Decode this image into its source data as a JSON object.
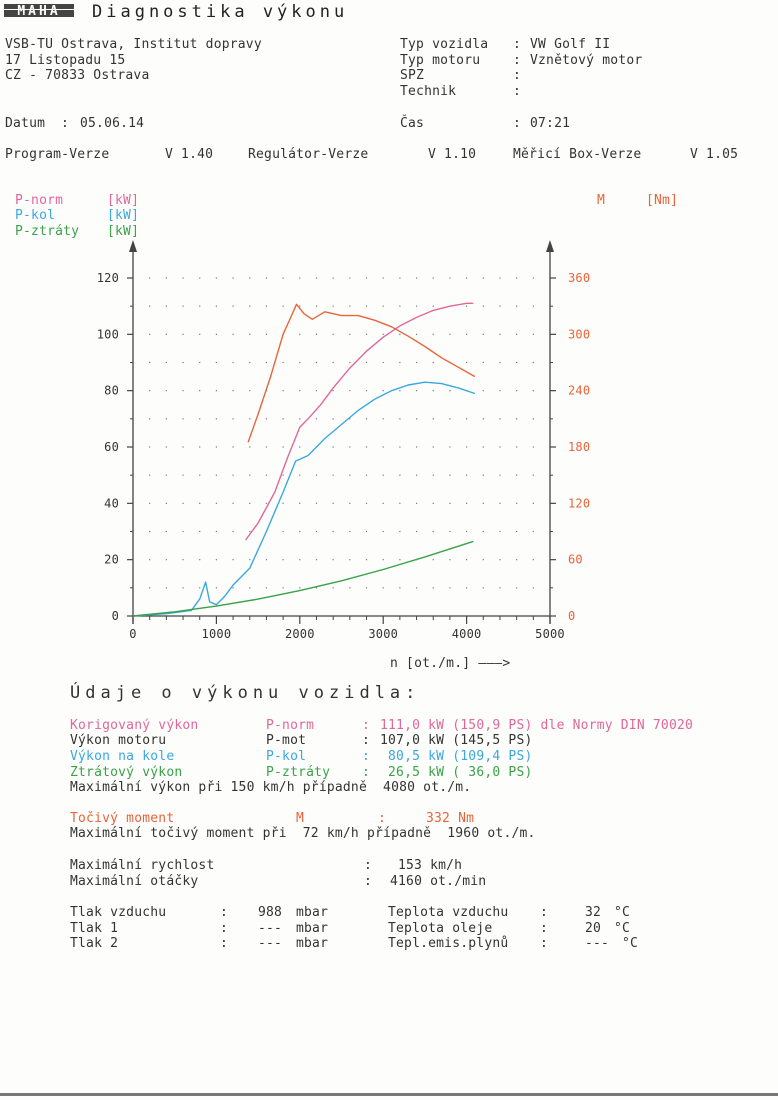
{
  "header": {
    "logo_text": "MAHA",
    "title": "Diagnostika výkonu",
    "address": [
      "VSB-TU Ostrava, Institut dopravy",
      "17 Listopadu 15",
      "CZ - 70833 Ostrava"
    ],
    "vehicle": [
      {
        "label": "Typ vozidla",
        "sep": ":",
        "value": "VW Golf II"
      },
      {
        "label": "Typ motoru",
        "sep": ":",
        "value": "Vznětový motor"
      },
      {
        "label": "SPZ",
        "sep": ":",
        "value": ""
      },
      {
        "label": "Technik",
        "sep": ":",
        "value": ""
      }
    ],
    "date_label": "Datum",
    "date_sep": ":",
    "date_value": "05.06.14",
    "time_label": "Čas",
    "time_sep": ":",
    "time_value": "07:21",
    "versions": [
      {
        "label": "Program-Verze",
        "value": "V 1.40"
      },
      {
        "label": "Regulátor-Verze",
        "value": "V 1.10"
      },
      {
        "label": "Měřicí Box-Verze",
        "value": "V 1.05"
      }
    ]
  },
  "legend": {
    "p_norm": {
      "name": "P-norm",
      "unit": "[kW]"
    },
    "p_kol": {
      "name": "P-kol",
      "unit": "[kW]"
    },
    "p_ztraty": {
      "name": "P-ztráty",
      "unit": "[kW]"
    },
    "m": {
      "name": "M",
      "unit": "[Nm]"
    }
  },
  "chart_data": {
    "type": "line",
    "xlabel": "n [ot./m.] ———>",
    "x_ticks": [
      "0",
      "1000",
      "2000",
      "3000",
      "4000",
      "5000"
    ],
    "y_left_ticks": [
      "0",
      "20",
      "40",
      "60",
      "80",
      "100",
      "120"
    ],
    "y_right_ticks": [
      "0",
      "60",
      "120",
      "180",
      "240",
      "300",
      "360"
    ],
    "xlim": [
      0,
      5000
    ],
    "ylim_left": [
      0,
      120
    ],
    "ylim_right": [
      0,
      360
    ],
    "grid": "dotted",
    "series": [
      {
        "name": "P-norm",
        "axis": "left",
        "color": "#e0679a",
        "x": [
          1350,
          1500,
          1700,
          1850,
          2000,
          2100,
          2250,
          2400,
          2600,
          2800,
          3000,
          3200,
          3400,
          3600,
          3800,
          4000,
          4080
        ],
        "y": [
          27,
          33,
          44,
          56,
          67,
          70,
          75,
          81,
          88,
          94,
          99,
          103,
          106,
          108.5,
          110,
          111,
          111
        ]
      },
      {
        "name": "P-kol",
        "axis": "left",
        "color": "#3aa8e0",
        "x": [
          0,
          400,
          700,
          800,
          870,
          920,
          1000,
          1100,
          1200,
          1400,
          1600,
          1800,
          1950,
          2100,
          2300,
          2500,
          2700,
          2900,
          3100,
          3300,
          3500,
          3700,
          3900,
          4100
        ],
        "y": [
          0,
          0.8,
          2,
          6,
          12,
          5,
          4,
          7,
          11,
          17,
          30,
          44,
          55,
          57,
          63,
          68,
          73,
          77,
          80,
          82,
          83,
          82.5,
          81,
          79
        ]
      },
      {
        "name": "P-ztráty",
        "axis": "left",
        "color": "#3aa24a",
        "x": [
          0,
          500,
          1000,
          1500,
          2000,
          2500,
          3000,
          3500,
          4080
        ],
        "y": [
          0,
          1.5,
          3.5,
          6,
          9,
          12.5,
          16.5,
          21,
          26.5
        ]
      },
      {
        "name": "M",
        "axis": "right",
        "color": "#e8643a",
        "x": [
          1380,
          1500,
          1650,
          1800,
          1900,
          1960,
          2050,
          2150,
          2300,
          2500,
          2700,
          2900,
          3100,
          3300,
          3500,
          3700,
          3900,
          4100
        ],
        "y": [
          185,
          215,
          255,
          300,
          320,
          332,
          322,
          316,
          324,
          320,
          320,
          315,
          308,
          298,
          287,
          275,
          265,
          255
        ]
      }
    ]
  },
  "results": {
    "heading": "Údaje o výkonu vozidla:",
    "rows": [
      {
        "label": "Korigovaný výkon",
        "code": "P-norm",
        "sep": ":",
        "value": "111,0 kW (150,9 PS) dle Normy DIN 70020",
        "cls": "pink"
      },
      {
        "label": "Výkon motoru",
        "code": "P-mot",
        "sep": ":",
        "value": "107,0 kW (145,5 PS)",
        "cls": "dark"
      },
      {
        "label": "Výkon na kole",
        "code": "P-kol",
        "sep": ":",
        "value": " 80,5 kW (109,4 PS)",
        "cls": "blue"
      },
      {
        "label": "Ztrátový výkon",
        "code": "P-ztráty",
        "sep": ":",
        "value": " 26,5 kW ( 36,0 PS)",
        "cls": "green"
      }
    ],
    "max_power_line": "Maximální výkon při 150 km/h případně  4080 ot./m.",
    "torque_label": "Točivý moment",
    "torque_code": "M",
    "torque_sep": ":",
    "torque_value": "332 Nm",
    "max_torque_line": "Maximální točivý moment při  72 km/h případně  1960 ot./m.",
    "max_speed_label": "Maximální rychlost",
    "max_speed_sep": ":",
    "max_speed_value": "153 km/h",
    "max_rpm_label": "Maximální otáčky",
    "max_rpm_sep": ":",
    "max_rpm_value": "4160 ot./min"
  },
  "conditions": [
    {
      "label": "Tlak vzduchu",
      "sep": ":",
      "value": "988",
      "unit": "mbar",
      "label2": "Teplota vzduchu",
      "sep2": ":",
      "value2": "32",
      "unit2": "°C"
    },
    {
      "label": "Tlak 1",
      "sep": ":",
      "value": "---",
      "unit": "mbar",
      "label2": "Teplota oleje",
      "sep2": ":",
      "value2": "20",
      "unit2": "°C"
    },
    {
      "label": "Tlak 2",
      "sep": ":",
      "value": "---",
      "unit": "mbar",
      "label2": "Tepl.emis.plynů",
      "sep2": ":",
      "value2": "---",
      "unit2": "°C"
    }
  ]
}
